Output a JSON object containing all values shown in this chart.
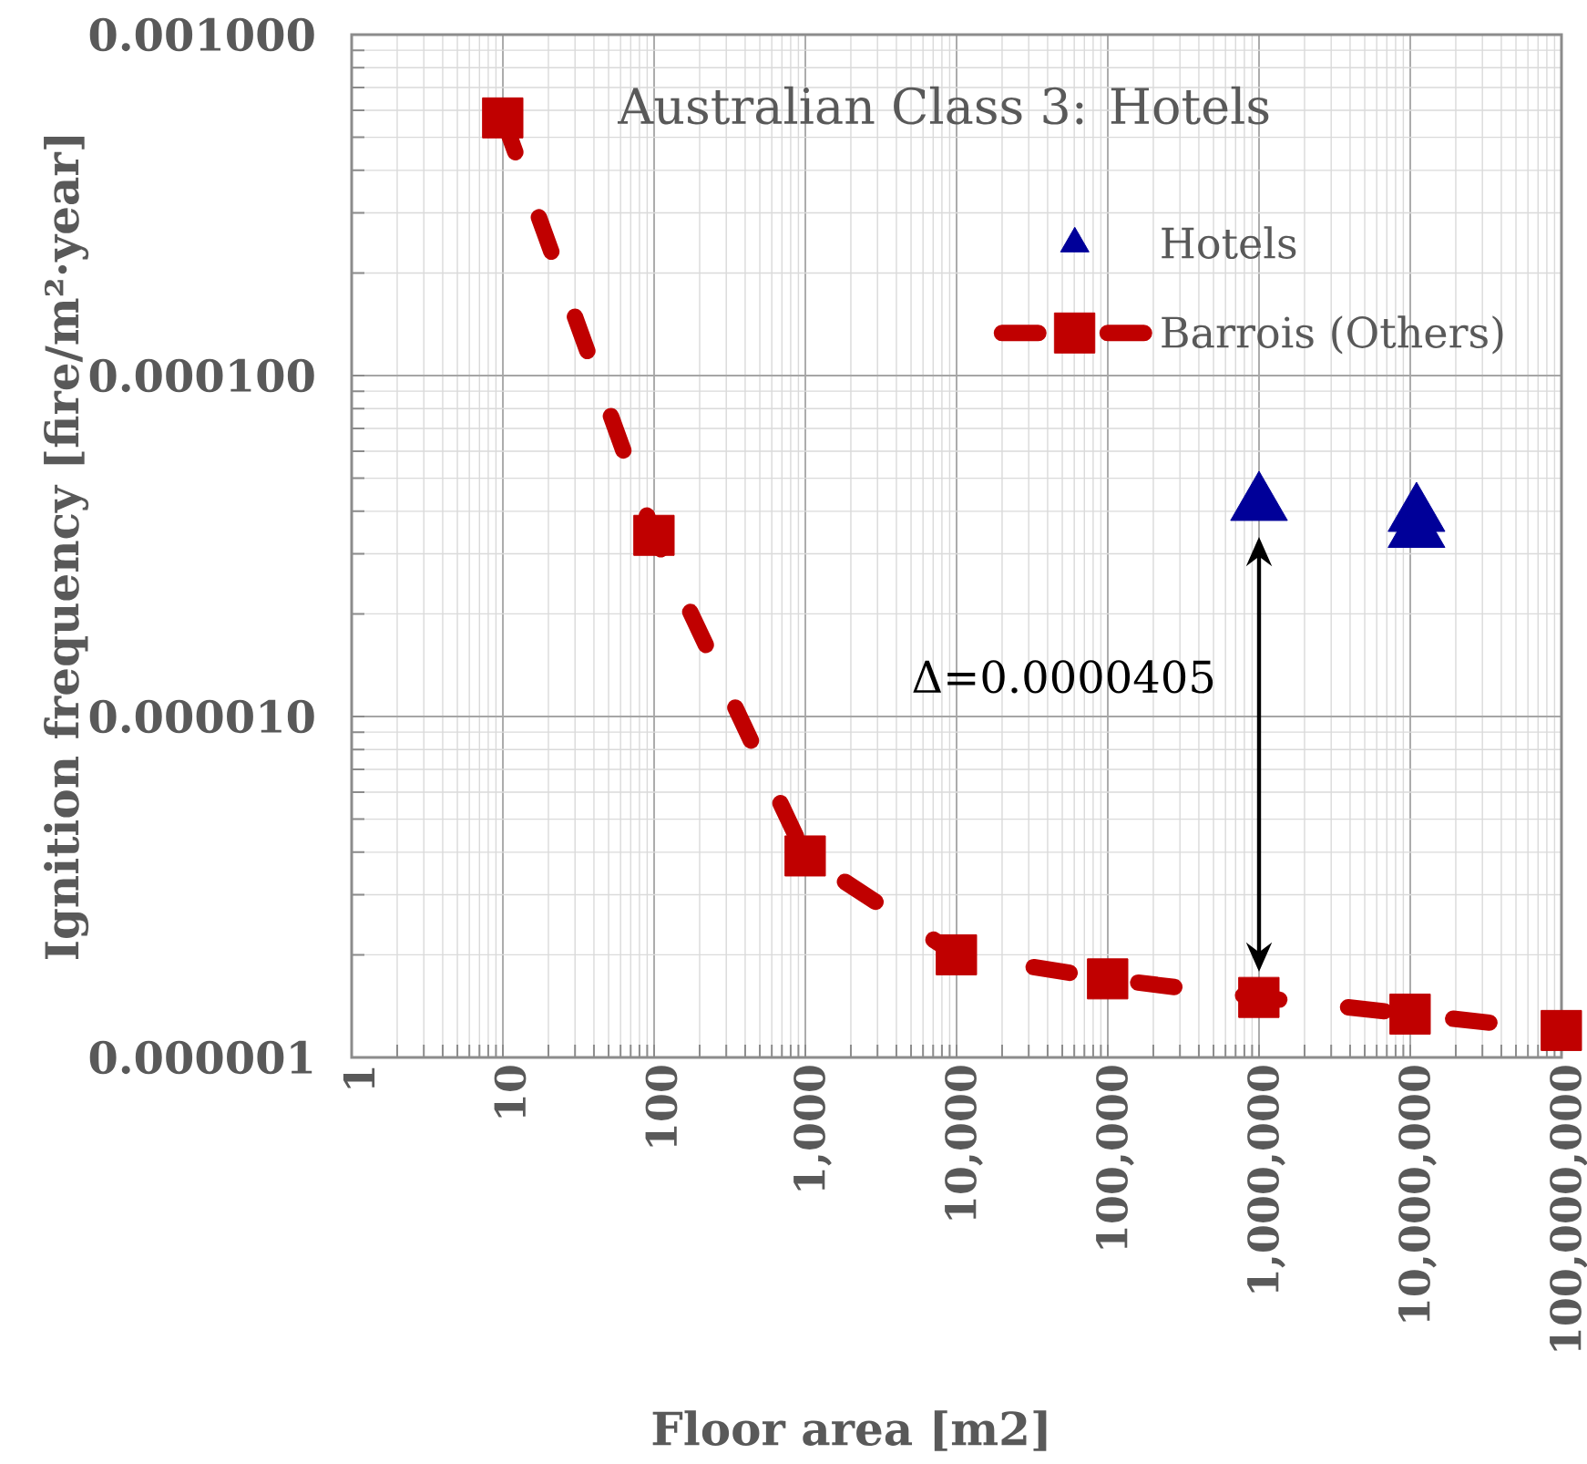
{
  "chart_data": {
    "type": "line",
    "title": "Australian Class 3: Hotels",
    "xlabel": "Floor area [m2]",
    "ylabel": "Ignition frequency [fire/m²·year]",
    "log": "xy",
    "xlim": [
      1,
      100000000
    ],
    "ylim": [
      1e-06,
      0.001
    ],
    "xticks": [
      1,
      10,
      100,
      {
        "value": 1000,
        "label": "1,000"
      },
      {
        "value": 10000,
        "label": "10,000"
      },
      {
        "value": 100000,
        "label": "100,000"
      },
      {
        "value": 1000000,
        "label": "1,000,000"
      },
      {
        "value": 10000000,
        "label": "10,000,000"
      },
      {
        "value": 100000000,
        "label": "100,000,000"
      }
    ],
    "yticks": [
      {
        "value": 1e-06,
        "label": "0.000001"
      },
      {
        "value": 1e-05,
        "label": "0.000010"
      },
      {
        "value": 0.0001,
        "label": "0.000100"
      },
      {
        "value": 0.001,
        "label": "0.001000"
      }
    ],
    "grid": true,
    "legend": "top right",
    "series": [
      {
        "name": "Hotels",
        "type": "scatter",
        "color": "#000099",
        "marker": "triangle",
        "x": [
          1000000,
          11000000,
          11000000
        ],
        "values": [
          4.2e-05,
          3.9e-05,
          3.5e-05
        ]
      },
      {
        "name": "Barrois (Others)",
        "color": "#c00000",
        "marker": "square",
        "line_style": "dashed",
        "x": [
          10,
          100,
          1000,
          10000,
          100000,
          1000000,
          10000000,
          100000000
        ],
        "values": [
          0.00057,
          3.4e-05,
          3.9e-06,
          2e-06,
          1.7e-06,
          1.5e-06,
          1.34e-06,
          1.2e-06
        ]
      }
    ],
    "annotations": [
      "Δ=0.0000405"
    ]
  }
}
